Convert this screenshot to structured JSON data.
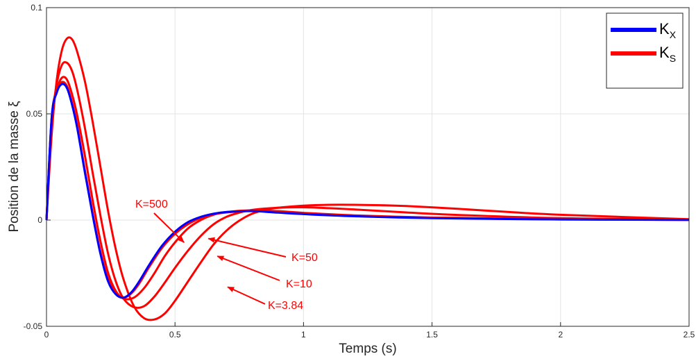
{
  "chart_data": {
    "type": "line",
    "title": "",
    "xlabel": "Temps (s)",
    "ylabel": "Position de la masse ξ",
    "xlim": [
      0,
      2.5
    ],
    "ylim": [
      -0.05,
      0.1
    ],
    "grid": true,
    "legend_position": "top-right",
    "x_ticks": [
      {
        "value": 0,
        "label": "0"
      },
      {
        "value": 0.5,
        "label": "0.5"
      },
      {
        "value": 1,
        "label": "1"
      },
      {
        "value": 1.5,
        "label": "1.5"
      },
      {
        "value": 2,
        "label": "2"
      },
      {
        "value": 2.5,
        "label": "2.5"
      }
    ],
    "y_ticks": [
      {
        "value": -0.05,
        "label": "-0.05"
      },
      {
        "value": 0,
        "label": "0"
      },
      {
        "value": 0.05,
        "label": "0.05"
      },
      {
        "value": 0.1,
        "label": "0.1"
      }
    ],
    "legend": [
      {
        "label": "K",
        "sub": "X",
        "color": "#0000ff"
      },
      {
        "label": "K",
        "sub": "S",
        "color": "#ff0000"
      }
    ],
    "series": [
      {
        "color": "#0000ff",
        "x": [
          0,
          0.02,
          0.04,
          0.06,
          0.08,
          0.1,
          0.12,
          0.15,
          0.18,
          0.21,
          0.24,
          0.27,
          0.3,
          0.33,
          0.36,
          0.4,
          0.45,
          0.5,
          0.55,
          0.6,
          0.65,
          0.7,
          0.8,
          0.9,
          1.0,
          1.2,
          1.5,
          2.0,
          2.5
        ],
        "y": [
          0,
          0.048,
          0.06,
          0.064,
          0.062,
          0.054,
          0.043,
          0.022,
          0.002,
          -0.016,
          -0.029,
          -0.035,
          -0.0365,
          -0.034,
          -0.029,
          -0.021,
          -0.012,
          -0.0055,
          -0.001,
          0.0015,
          0.003,
          0.0038,
          0.0042,
          0.0035,
          0.0028,
          0.0018,
          0.0009,
          0.0003,
          0.0001
        ]
      },
      {
        "color": "#ff0000",
        "x": [
          0,
          0.02,
          0.04,
          0.06,
          0.08,
          0.1,
          0.12,
          0.15,
          0.18,
          0.21,
          0.24,
          0.27,
          0.3,
          0.33,
          0.36,
          0.4,
          0.45,
          0.5,
          0.55,
          0.6,
          0.65,
          0.7,
          0.8,
          0.9,
          1.0,
          1.2,
          1.5,
          2.0,
          2.5
        ],
        "y": [
          0,
          0.048,
          0.061,
          0.065,
          0.063,
          0.055,
          0.044,
          0.023,
          0.003,
          -0.015,
          -0.028,
          -0.0345,
          -0.0365,
          -0.0345,
          -0.03,
          -0.022,
          -0.013,
          -0.0065,
          -0.002,
          0.001,
          0.0027,
          0.0036,
          0.0043,
          0.0037,
          0.0029,
          0.0019,
          0.001,
          0.0003,
          0.0001
        ]
      },
      {
        "color": "#ff0000",
        "x": [
          0,
          0.02,
          0.04,
          0.06,
          0.08,
          0.1,
          0.12,
          0.15,
          0.18,
          0.21,
          0.24,
          0.27,
          0.3,
          0.34,
          0.38,
          0.42,
          0.46,
          0.5,
          0.55,
          0.6,
          0.65,
          0.7,
          0.8,
          0.9,
          1.0,
          1.2,
          1.5,
          2.0,
          2.5
        ],
        "y": [
          0,
          0.047,
          0.061,
          0.067,
          0.066,
          0.059,
          0.049,
          0.03,
          0.009,
          -0.01,
          -0.025,
          -0.0335,
          -0.037,
          -0.0365,
          -0.032,
          -0.025,
          -0.017,
          -0.0105,
          -0.004,
          0.0,
          0.0025,
          0.0038,
          0.0046,
          0.0042,
          0.0034,
          0.0022,
          0.0012,
          0.0004,
          0.0001
        ]
      },
      {
        "color": "#ff0000",
        "x": [
          0,
          0.02,
          0.04,
          0.06,
          0.08,
          0.1,
          0.12,
          0.15,
          0.18,
          0.21,
          0.24,
          0.27,
          0.3,
          0.34,
          0.38,
          0.42,
          0.46,
          0.5,
          0.55,
          0.6,
          0.65,
          0.7,
          0.75,
          0.8,
          0.9,
          1.0,
          1.1,
          1.2,
          1.4,
          1.6,
          2.0,
          2.5
        ],
        "y": [
          0,
          0.045,
          0.064,
          0.073,
          0.074,
          0.07,
          0.061,
          0.043,
          0.022,
          0.002,
          -0.016,
          -0.029,
          -0.037,
          -0.041,
          -0.0405,
          -0.036,
          -0.0295,
          -0.0225,
          -0.0145,
          -0.0075,
          -0.002,
          0.0015,
          0.0035,
          0.0048,
          0.0058,
          0.006,
          0.0056,
          0.005,
          0.0036,
          0.0024,
          0.0009,
          0.0002
        ]
      },
      {
        "color": "#ff0000",
        "x": [
          0,
          0.02,
          0.04,
          0.06,
          0.08,
          0.1,
          0.12,
          0.15,
          0.18,
          0.21,
          0.24,
          0.27,
          0.3,
          0.34,
          0.38,
          0.42,
          0.46,
          0.5,
          0.55,
          0.6,
          0.65,
          0.7,
          0.75,
          0.8,
          0.85,
          0.9,
          1.0,
          1.1,
          1.2,
          1.3,
          1.4,
          1.6,
          1.8,
          2.0,
          2.5
        ],
        "y": [
          0,
          0.04,
          0.066,
          0.08,
          0.0855,
          0.085,
          0.079,
          0.065,
          0.046,
          0.025,
          0.004,
          -0.014,
          -0.028,
          -0.0405,
          -0.0462,
          -0.0468,
          -0.044,
          -0.038,
          -0.029,
          -0.02,
          -0.0115,
          -0.005,
          -0.0003,
          0.003,
          0.0048,
          0.0058,
          0.0068,
          0.0072,
          0.0072,
          0.007,
          0.0066,
          0.0053,
          0.0038,
          0.0025,
          0.0004
        ]
      }
    ],
    "annotations": [
      {
        "text": "K=500",
        "target_x": 0.535,
        "target_y": -0.0105
      },
      {
        "text": "K=50",
        "target_x": 0.63,
        "target_y": -0.0087
      },
      {
        "text": "K=10",
        "target_x": 0.665,
        "target_y": -0.017
      },
      {
        "text": "K=3.84",
        "target_x": 0.705,
        "target_y": -0.0315
      }
    ]
  }
}
